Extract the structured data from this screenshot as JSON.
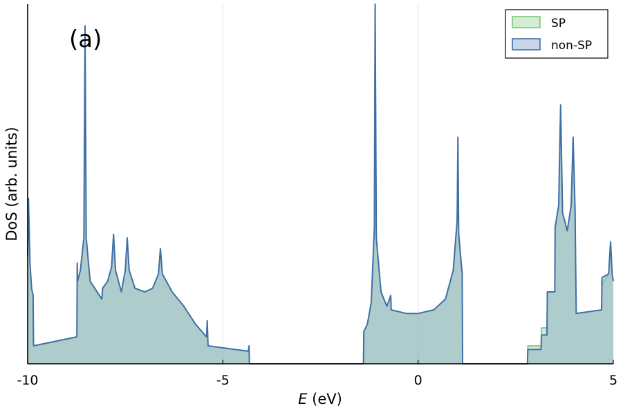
{
  "chart_data": {
    "type": "area",
    "panel_label": "(a)",
    "xlabel": "E",
    "xlabel_unit": " (eV)",
    "ylabel": "DoS (arb. units)",
    "xlim": [
      -10,
      5
    ],
    "ylim": [
      0,
      1
    ],
    "xticks": [
      {
        "value": -10,
        "label": "-10"
      },
      {
        "value": -5,
        "label": "-5"
      },
      {
        "value": 0,
        "label": "0"
      },
      {
        "value": 5,
        "label": "5"
      }
    ],
    "vertical_gridlines": [
      -5,
      0
    ],
    "legend": {
      "placement": "top-right",
      "entries": [
        {
          "label": "SP",
          "fill": "#d3ecd3",
          "stroke": "#6cbf6c"
        },
        {
          "label": "non-SP",
          "fill": "#c9d6ea",
          "stroke": "#3f6fa8"
        }
      ]
    },
    "series": [
      {
        "name": "SP",
        "stroke": "#6cbf6c",
        "fill": "rgba(155,205,165,0.45)",
        "points": [
          [
            -10,
            0.3
          ],
          [
            -9.98,
            0.46
          ],
          [
            -9.94,
            0.28
          ],
          [
            -9.9,
            0.21
          ],
          [
            -9.86,
            0.19
          ],
          [
            -9.85,
            0.05
          ],
          [
            -8.74,
            0.075
          ],
          [
            -8.73,
            0.28
          ],
          [
            -8.72,
            0.23
          ],
          [
            -8.65,
            0.26
          ],
          [
            -8.56,
            0.35
          ],
          [
            -8.53,
            0.94
          ],
          [
            -8.5,
            0.35
          ],
          [
            -8.4,
            0.23
          ],
          [
            -8.1,
            0.18
          ],
          [
            -8.08,
            0.21
          ],
          [
            -7.95,
            0.23
          ],
          [
            -7.85,
            0.27
          ],
          [
            -7.8,
            0.36
          ],
          [
            -7.75,
            0.26
          ],
          [
            -7.6,
            0.2
          ],
          [
            -7.5,
            0.26
          ],
          [
            -7.45,
            0.35
          ],
          [
            -7.4,
            0.26
          ],
          [
            -7.25,
            0.21
          ],
          [
            -7.0,
            0.2
          ],
          [
            -6.8,
            0.21
          ],
          [
            -6.65,
            0.25
          ],
          [
            -6.6,
            0.32
          ],
          [
            -6.55,
            0.25
          ],
          [
            -6.3,
            0.2
          ],
          [
            -6.0,
            0.16
          ],
          [
            -5.7,
            0.11
          ],
          [
            -5.42,
            0.075
          ],
          [
            -5.4,
            0.12
          ],
          [
            -5.38,
            0.05
          ],
          [
            -4.35,
            0.035
          ],
          [
            -4.33,
            0.05
          ],
          [
            -4.32,
            0.0
          ],
          [
            -1.4,
            0.0
          ],
          [
            -1.39,
            0.09
          ],
          [
            -1.3,
            0.11
          ],
          [
            -1.2,
            0.17
          ],
          [
            -1.12,
            0.38
          ],
          [
            -1.1,
            1.0
          ],
          [
            -1.07,
            0.35
          ],
          [
            -0.95,
            0.2
          ],
          [
            -0.8,
            0.16
          ],
          [
            -0.7,
            0.19
          ],
          [
            -0.69,
            0.15
          ],
          [
            -0.3,
            0.14
          ],
          [
            0.0,
            0.14
          ],
          [
            0.4,
            0.15
          ],
          [
            0.7,
            0.18
          ],
          [
            0.9,
            0.26
          ],
          [
            1.0,
            0.4
          ],
          [
            1.02,
            0.63
          ],
          [
            1.04,
            0.36
          ],
          [
            1.13,
            0.25
          ],
          [
            1.14,
            0.0
          ],
          [
            2.8,
            0.0
          ],
          [
            2.81,
            0.05
          ],
          [
            3.15,
            0.05
          ],
          [
            3.16,
            0.1
          ],
          [
            3.3,
            0.1
          ],
          [
            3.31,
            0.2
          ],
          [
            3.5,
            0.2
          ],
          [
            3.51,
            0.38
          ],
          [
            3.6,
            0.44
          ],
          [
            3.65,
            0.72
          ],
          [
            3.7,
            0.42
          ],
          [
            3.82,
            0.37
          ],
          [
            3.92,
            0.44
          ],
          [
            3.97,
            0.63
          ],
          [
            4.02,
            0.43
          ],
          [
            4.05,
            0.14
          ],
          [
            4.7,
            0.15
          ],
          [
            4.71,
            0.22
          ],
          [
            4.88,
            0.25
          ],
          [
            4.93,
            0.34
          ],
          [
            4.97,
            0.25
          ],
          [
            5.0,
            0.23
          ]
        ]
      },
      {
        "name": "non-SP",
        "stroke": "#3f6fa8",
        "fill": "rgba(150,185,195,0.60)",
        "points": [
          [
            -10,
            0.3
          ],
          [
            -9.98,
            0.46
          ],
          [
            -9.94,
            0.28
          ],
          [
            -9.9,
            0.21
          ],
          [
            -9.86,
            0.19
          ],
          [
            -9.85,
            0.05
          ],
          [
            -8.74,
            0.075
          ],
          [
            -8.73,
            0.28
          ],
          [
            -8.72,
            0.23
          ],
          [
            -8.65,
            0.26
          ],
          [
            -8.56,
            0.35
          ],
          [
            -8.53,
            0.94
          ],
          [
            -8.5,
            0.35
          ],
          [
            -8.4,
            0.23
          ],
          [
            -8.1,
            0.18
          ],
          [
            -8.08,
            0.21
          ],
          [
            -7.95,
            0.23
          ],
          [
            -7.85,
            0.27
          ],
          [
            -7.8,
            0.36
          ],
          [
            -7.75,
            0.26
          ],
          [
            -7.6,
            0.2
          ],
          [
            -7.5,
            0.26
          ],
          [
            -7.45,
            0.35
          ],
          [
            -7.4,
            0.26
          ],
          [
            -7.25,
            0.21
          ],
          [
            -7.0,
            0.2
          ],
          [
            -6.8,
            0.21
          ],
          [
            -6.65,
            0.25
          ],
          [
            -6.6,
            0.32
          ],
          [
            -6.55,
            0.25
          ],
          [
            -6.3,
            0.2
          ],
          [
            -6.0,
            0.16
          ],
          [
            -5.7,
            0.11
          ],
          [
            -5.42,
            0.075
          ],
          [
            -5.4,
            0.12
          ],
          [
            -5.38,
            0.05
          ],
          [
            -4.35,
            0.035
          ],
          [
            -4.33,
            0.05
          ],
          [
            -4.32,
            0.0
          ],
          [
            -1.4,
            0.0
          ],
          [
            -1.39,
            0.09
          ],
          [
            -1.3,
            0.11
          ],
          [
            -1.2,
            0.17
          ],
          [
            -1.12,
            0.38
          ],
          [
            -1.1,
            1.0
          ],
          [
            -1.07,
            0.35
          ],
          [
            -0.95,
            0.2
          ],
          [
            -0.8,
            0.16
          ],
          [
            -0.7,
            0.19
          ],
          [
            -0.69,
            0.15
          ],
          [
            -0.3,
            0.14
          ],
          [
            0.0,
            0.14
          ],
          [
            0.4,
            0.15
          ],
          [
            0.7,
            0.18
          ],
          [
            0.9,
            0.26
          ],
          [
            1.0,
            0.4
          ],
          [
            1.02,
            0.63
          ],
          [
            1.04,
            0.36
          ],
          [
            1.13,
            0.25
          ],
          [
            1.14,
            0.0
          ],
          [
            2.8,
            0.0
          ],
          [
            2.81,
            0.04
          ],
          [
            3.15,
            0.04
          ],
          [
            3.16,
            0.08
          ],
          [
            3.3,
            0.08
          ],
          [
            3.31,
            0.2
          ],
          [
            3.5,
            0.2
          ],
          [
            3.51,
            0.38
          ],
          [
            3.6,
            0.44
          ],
          [
            3.65,
            0.72
          ],
          [
            3.7,
            0.42
          ],
          [
            3.82,
            0.37
          ],
          [
            3.92,
            0.44
          ],
          [
            3.97,
            0.63
          ],
          [
            4.02,
            0.43
          ],
          [
            4.05,
            0.14
          ],
          [
            4.7,
            0.15
          ],
          [
            4.71,
            0.24
          ],
          [
            4.88,
            0.25
          ],
          [
            4.93,
            0.34
          ],
          [
            4.97,
            0.25
          ],
          [
            5.0,
            0.23
          ]
        ]
      }
    ]
  }
}
